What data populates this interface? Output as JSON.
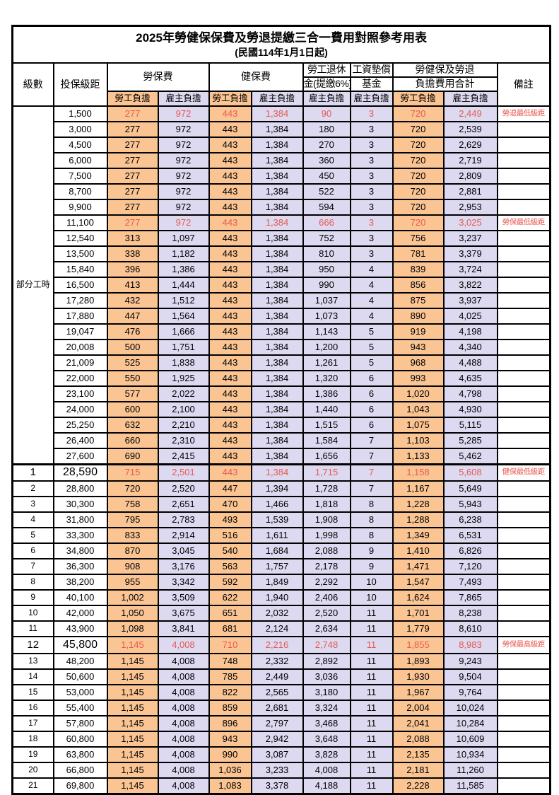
{
  "table": {
    "title": "2025年勞健保保費及勞退提繳三合一費用對照參考用表",
    "subtitle": "(民國114年1月1日起)",
    "header": {
      "level": "級數",
      "bracket": "投保級距",
      "labor_insurance": "勞保費",
      "health_insurance": "健保費",
      "pension_line1": "勞工退休",
      "pension_line2": "金(提繳6%)",
      "wage_fund_line1": "工資墊償",
      "wage_fund_line2": "基金",
      "total_line1": "勞健保及勞退",
      "total_line2": "負擔費用合計",
      "employee_burden": "勞工負擔",
      "employer_burden": "雇主負擔",
      "remark": "備註"
    },
    "part_time_label": "部分工時",
    "part_time_row_count": 23,
    "colors": {
      "employee_bg": "#FAC493",
      "employer_bg": "#DCD9F0",
      "highlight_text": "#E85A50",
      "remark_text": "#EE6F65",
      "border": "#000000"
    },
    "rows": [
      {
        "level": "",
        "bracket": "1,500",
        "li_emp": "277",
        "li_er": "972",
        "hi_emp": "443",
        "hi_er": "1,384",
        "pension": "90",
        "fund": "3",
        "tot_emp": "720",
        "tot_er": "2,449",
        "remark": "勞退最低級距",
        "highlight": true,
        "big": false
      },
      {
        "level": "",
        "bracket": "3,000",
        "li_emp": "277",
        "li_er": "972",
        "hi_emp": "443",
        "hi_er": "1,384",
        "pension": "180",
        "fund": "3",
        "tot_emp": "720",
        "tot_er": "2,539",
        "remark": "",
        "highlight": false,
        "big": false
      },
      {
        "level": "",
        "bracket": "4,500",
        "li_emp": "277",
        "li_er": "972",
        "hi_emp": "443",
        "hi_er": "1,384",
        "pension": "270",
        "fund": "3",
        "tot_emp": "720",
        "tot_er": "2,629",
        "remark": "",
        "highlight": false,
        "big": false
      },
      {
        "level": "",
        "bracket": "6,000",
        "li_emp": "277",
        "li_er": "972",
        "hi_emp": "443",
        "hi_er": "1,384",
        "pension": "360",
        "fund": "3",
        "tot_emp": "720",
        "tot_er": "2,719",
        "remark": "",
        "highlight": false,
        "big": false
      },
      {
        "level": "",
        "bracket": "7,500",
        "li_emp": "277",
        "li_er": "972",
        "hi_emp": "443",
        "hi_er": "1,384",
        "pension": "450",
        "fund": "3",
        "tot_emp": "720",
        "tot_er": "2,809",
        "remark": "",
        "highlight": false,
        "big": false
      },
      {
        "level": "",
        "bracket": "8,700",
        "li_emp": "277",
        "li_er": "972",
        "hi_emp": "443",
        "hi_er": "1,384",
        "pension": "522",
        "fund": "3",
        "tot_emp": "720",
        "tot_er": "2,881",
        "remark": "",
        "highlight": false,
        "big": false
      },
      {
        "level": "",
        "bracket": "9,900",
        "li_emp": "277",
        "li_er": "972",
        "hi_emp": "443",
        "hi_er": "1,384",
        "pension": "594",
        "fund": "3",
        "tot_emp": "720",
        "tot_er": "2,953",
        "remark": "",
        "highlight": false,
        "big": false
      },
      {
        "level": "",
        "bracket": "11,100",
        "li_emp": "277",
        "li_er": "972",
        "hi_emp": "443",
        "hi_er": "1,384",
        "pension": "666",
        "fund": "3",
        "tot_emp": "720",
        "tot_er": "3,025",
        "remark": "勞保最低級距",
        "highlight": true,
        "big": false
      },
      {
        "level": "",
        "bracket": "12,540",
        "li_emp": "313",
        "li_er": "1,097",
        "hi_emp": "443",
        "hi_er": "1,384",
        "pension": "752",
        "fund": "3",
        "tot_emp": "756",
        "tot_er": "3,237",
        "remark": "",
        "highlight": false,
        "big": false
      },
      {
        "level": "",
        "bracket": "13,500",
        "li_emp": "338",
        "li_er": "1,182",
        "hi_emp": "443",
        "hi_er": "1,384",
        "pension": "810",
        "fund": "3",
        "tot_emp": "781",
        "tot_er": "3,379",
        "remark": "",
        "highlight": false,
        "big": false
      },
      {
        "level": "",
        "bracket": "15,840",
        "li_emp": "396",
        "li_er": "1,386",
        "hi_emp": "443",
        "hi_er": "1,384",
        "pension": "950",
        "fund": "4",
        "tot_emp": "839",
        "tot_er": "3,724",
        "remark": "",
        "highlight": false,
        "big": false
      },
      {
        "level": "",
        "bracket": "16,500",
        "li_emp": "413",
        "li_er": "1,444",
        "hi_emp": "443",
        "hi_er": "1,384",
        "pension": "990",
        "fund": "4",
        "tot_emp": "856",
        "tot_er": "3,822",
        "remark": "",
        "highlight": false,
        "big": false
      },
      {
        "level": "",
        "bracket": "17,280",
        "li_emp": "432",
        "li_er": "1,512",
        "hi_emp": "443",
        "hi_er": "1,384",
        "pension": "1,037",
        "fund": "4",
        "tot_emp": "875",
        "tot_er": "3,937",
        "remark": "",
        "highlight": false,
        "big": false
      },
      {
        "level": "",
        "bracket": "17,880",
        "li_emp": "447",
        "li_er": "1,564",
        "hi_emp": "443",
        "hi_er": "1,384",
        "pension": "1,073",
        "fund": "4",
        "tot_emp": "890",
        "tot_er": "4,025",
        "remark": "",
        "highlight": false,
        "big": false
      },
      {
        "level": "",
        "bracket": "19,047",
        "li_emp": "476",
        "li_er": "1,666",
        "hi_emp": "443",
        "hi_er": "1,384",
        "pension": "1,143",
        "fund": "5",
        "tot_emp": "919",
        "tot_er": "4,198",
        "remark": "",
        "highlight": false,
        "big": false
      },
      {
        "level": "",
        "bracket": "20,008",
        "li_emp": "500",
        "li_er": "1,751",
        "hi_emp": "443",
        "hi_er": "1,384",
        "pension": "1,200",
        "fund": "5",
        "tot_emp": "943",
        "tot_er": "4,340",
        "remark": "",
        "highlight": false,
        "big": false
      },
      {
        "level": "",
        "bracket": "21,009",
        "li_emp": "525",
        "li_er": "1,838",
        "hi_emp": "443",
        "hi_er": "1,384",
        "pension": "1,261",
        "fund": "5",
        "tot_emp": "968",
        "tot_er": "4,488",
        "remark": "",
        "highlight": false,
        "big": false
      },
      {
        "level": "",
        "bracket": "22,000",
        "li_emp": "550",
        "li_er": "1,925",
        "hi_emp": "443",
        "hi_er": "1,384",
        "pension": "1,320",
        "fund": "6",
        "tot_emp": "993",
        "tot_er": "4,635",
        "remark": "",
        "highlight": false,
        "big": false
      },
      {
        "level": "",
        "bracket": "23,100",
        "li_emp": "577",
        "li_er": "2,022",
        "hi_emp": "443",
        "hi_er": "1,384",
        "pension": "1,386",
        "fund": "6",
        "tot_emp": "1,020",
        "tot_er": "4,798",
        "remark": "",
        "highlight": false,
        "big": false
      },
      {
        "level": "",
        "bracket": "24,000",
        "li_emp": "600",
        "li_er": "2,100",
        "hi_emp": "443",
        "hi_er": "1,384",
        "pension": "1,440",
        "fund": "6",
        "tot_emp": "1,043",
        "tot_er": "4,930",
        "remark": "",
        "highlight": false,
        "big": false
      },
      {
        "level": "",
        "bracket": "25,250",
        "li_emp": "632",
        "li_er": "2,210",
        "hi_emp": "443",
        "hi_er": "1,384",
        "pension": "1,515",
        "fund": "6",
        "tot_emp": "1,075",
        "tot_er": "5,115",
        "remark": "",
        "highlight": false,
        "big": false
      },
      {
        "level": "",
        "bracket": "26,400",
        "li_emp": "660",
        "li_er": "2,310",
        "hi_emp": "443",
        "hi_er": "1,384",
        "pension": "1,584",
        "fund": "7",
        "tot_emp": "1,103",
        "tot_er": "5,285",
        "remark": "",
        "highlight": false,
        "big": false
      },
      {
        "level": "",
        "bracket": "27,600",
        "li_emp": "690",
        "li_er": "2,415",
        "hi_emp": "443",
        "hi_er": "1,384",
        "pension": "1,656",
        "fund": "7",
        "tot_emp": "1,133",
        "tot_er": "5,462",
        "remark": "",
        "highlight": false,
        "big": false
      },
      {
        "level": "1",
        "bracket": "28,590",
        "li_emp": "715",
        "li_er": "2,501",
        "hi_emp": "443",
        "hi_er": "1,384",
        "pension": "1,715",
        "fund": "7",
        "tot_emp": "1,158",
        "tot_er": "5,608",
        "remark": "健保最低級距",
        "highlight": true,
        "big": true,
        "section_start": true
      },
      {
        "level": "2",
        "bracket": "28,800",
        "li_emp": "720",
        "li_er": "2,520",
        "hi_emp": "447",
        "hi_er": "1,394",
        "pension": "1,728",
        "fund": "7",
        "tot_emp": "1,167",
        "tot_er": "5,649",
        "remark": "",
        "highlight": false,
        "big": false
      },
      {
        "level": "3",
        "bracket": "30,300",
        "li_emp": "758",
        "li_er": "2,651",
        "hi_emp": "470",
        "hi_er": "1,466",
        "pension": "1,818",
        "fund": "8",
        "tot_emp": "1,228",
        "tot_er": "5,943",
        "remark": "",
        "highlight": false,
        "big": false
      },
      {
        "level": "4",
        "bracket": "31,800",
        "li_emp": "795",
        "li_er": "2,783",
        "hi_emp": "493",
        "hi_er": "1,539",
        "pension": "1,908",
        "fund": "8",
        "tot_emp": "1,288",
        "tot_er": "6,238",
        "remark": "",
        "highlight": false,
        "big": false
      },
      {
        "level": "5",
        "bracket": "33,300",
        "li_emp": "833",
        "li_er": "2,914",
        "hi_emp": "516",
        "hi_er": "1,611",
        "pension": "1,998",
        "fund": "8",
        "tot_emp": "1,349",
        "tot_er": "6,531",
        "remark": "",
        "highlight": false,
        "big": false
      },
      {
        "level": "6",
        "bracket": "34,800",
        "li_emp": "870",
        "li_er": "3,045",
        "hi_emp": "540",
        "hi_er": "1,684",
        "pension": "2,088",
        "fund": "9",
        "tot_emp": "1,410",
        "tot_er": "6,826",
        "remark": "",
        "highlight": false,
        "big": false
      },
      {
        "level": "7",
        "bracket": "36,300",
        "li_emp": "908",
        "li_er": "3,176",
        "hi_emp": "563",
        "hi_er": "1,757",
        "pension": "2,178",
        "fund": "9",
        "tot_emp": "1,471",
        "tot_er": "7,120",
        "remark": "",
        "highlight": false,
        "big": false
      },
      {
        "level": "8",
        "bracket": "38,200",
        "li_emp": "955",
        "li_er": "3,342",
        "hi_emp": "592",
        "hi_er": "1,849",
        "pension": "2,292",
        "fund": "10",
        "tot_emp": "1,547",
        "tot_er": "7,493",
        "remark": "",
        "highlight": false,
        "big": false
      },
      {
        "level": "9",
        "bracket": "40,100",
        "li_emp": "1,002",
        "li_er": "3,509",
        "hi_emp": "622",
        "hi_er": "1,940",
        "pension": "2,406",
        "fund": "10",
        "tot_emp": "1,624",
        "tot_er": "7,865",
        "remark": "",
        "highlight": false,
        "big": false
      },
      {
        "level": "10",
        "bracket": "42,000",
        "li_emp": "1,050",
        "li_er": "3,675",
        "hi_emp": "651",
        "hi_er": "2,032",
        "pension": "2,520",
        "fund": "11",
        "tot_emp": "1,701",
        "tot_er": "8,238",
        "remark": "",
        "highlight": false,
        "big": false
      },
      {
        "level": "11",
        "bracket": "43,900",
        "li_emp": "1,098",
        "li_er": "3,841",
        "hi_emp": "681",
        "hi_er": "2,124",
        "pension": "2,634",
        "fund": "11",
        "tot_emp": "1,779",
        "tot_er": "8,610",
        "remark": "",
        "highlight": false,
        "big": false
      },
      {
        "level": "12",
        "bracket": "45,800",
        "li_emp": "1,145",
        "li_er": "4,008",
        "hi_emp": "710",
        "hi_er": "2,216",
        "pension": "2,748",
        "fund": "11",
        "tot_emp": "1,855",
        "tot_er": "8,983",
        "remark": "勞保最高級距",
        "highlight": true,
        "big": true
      },
      {
        "level": "13",
        "bracket": "48,200",
        "li_emp": "1,145",
        "li_er": "4,008",
        "hi_emp": "748",
        "hi_er": "2,332",
        "pension": "2,892",
        "fund": "11",
        "tot_emp": "1,893",
        "tot_er": "9,243",
        "remark": "",
        "highlight": false,
        "big": false
      },
      {
        "level": "14",
        "bracket": "50,600",
        "li_emp": "1,145",
        "li_er": "4,008",
        "hi_emp": "785",
        "hi_er": "2,449",
        "pension": "3,036",
        "fund": "11",
        "tot_emp": "1,930",
        "tot_er": "9,504",
        "remark": "",
        "highlight": false,
        "big": false
      },
      {
        "level": "15",
        "bracket": "53,000",
        "li_emp": "1,145",
        "li_er": "4,008",
        "hi_emp": "822",
        "hi_er": "2,565",
        "pension": "3,180",
        "fund": "11",
        "tot_emp": "1,967",
        "tot_er": "9,764",
        "remark": "",
        "highlight": false,
        "big": false
      },
      {
        "level": "16",
        "bracket": "55,400",
        "li_emp": "1,145",
        "li_er": "4,008",
        "hi_emp": "859",
        "hi_er": "2,681",
        "pension": "3,324",
        "fund": "11",
        "tot_emp": "2,004",
        "tot_er": "10,024",
        "remark": "",
        "highlight": false,
        "big": false
      },
      {
        "level": "17",
        "bracket": "57,800",
        "li_emp": "1,145",
        "li_er": "4,008",
        "hi_emp": "896",
        "hi_er": "2,797",
        "pension": "3,468",
        "fund": "11",
        "tot_emp": "2,041",
        "tot_er": "10,284",
        "remark": "",
        "highlight": false,
        "big": false
      },
      {
        "level": "18",
        "bracket": "60,800",
        "li_emp": "1,145",
        "li_er": "4,008",
        "hi_emp": "943",
        "hi_er": "2,942",
        "pension": "3,648",
        "fund": "11",
        "tot_emp": "2,088",
        "tot_er": "10,609",
        "remark": "",
        "highlight": false,
        "big": false
      },
      {
        "level": "19",
        "bracket": "63,800",
        "li_emp": "1,145",
        "li_er": "4,008",
        "hi_emp": "990",
        "hi_er": "3,087",
        "pension": "3,828",
        "fund": "11",
        "tot_emp": "2,135",
        "tot_er": "10,934",
        "remark": "",
        "highlight": false,
        "big": false
      },
      {
        "level": "20",
        "bracket": "66,800",
        "li_emp": "1,145",
        "li_er": "4,008",
        "hi_emp": "1,036",
        "hi_er": "3,233",
        "pension": "4,008",
        "fund": "11",
        "tot_emp": "2,181",
        "tot_er": "11,260",
        "remark": "",
        "highlight": false,
        "big": false
      },
      {
        "level": "21",
        "bracket": "69,800",
        "li_emp": "1,145",
        "li_er": "4,008",
        "hi_emp": "1,083",
        "hi_er": "3,378",
        "pension": "4,188",
        "fund": "11",
        "tot_emp": "2,228",
        "tot_er": "11,585",
        "remark": "",
        "highlight": false,
        "big": false
      }
    ]
  }
}
